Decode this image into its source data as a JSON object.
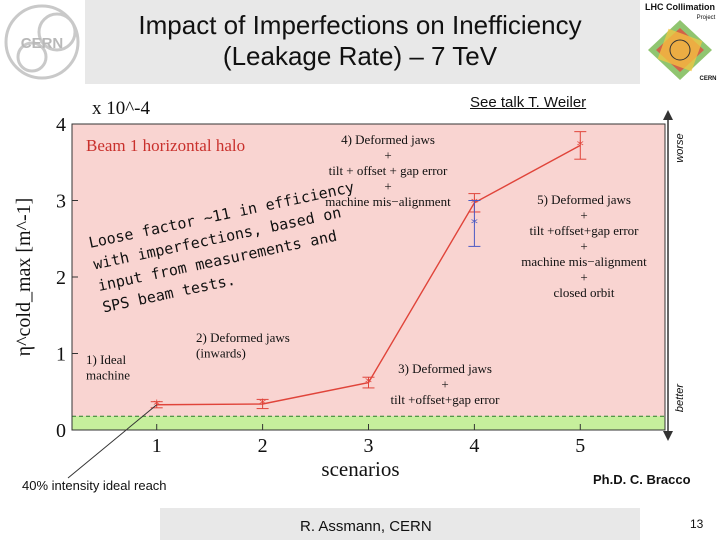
{
  "header": {
    "title_line1": "Impact of Imperfections on Inefficiency",
    "title_line2": "(Leakage Rate) – 7 TeV"
  },
  "logos": {
    "cern": "CERN",
    "lhc_line1": "LHC Collimation",
    "lhc_line2": "Project",
    "lhc_line3": "CERN"
  },
  "see_talk": "See talk T. Weiler",
  "side_arrow": {
    "top": "worse",
    "bottom": "better"
  },
  "annotation": {
    "loose_factor": [
      "Loose factor ~11 in efficiency",
      "with imperfections, based on",
      "input from measurements and",
      "SPS beam tests."
    ]
  },
  "intensity_label": "40% intensity ideal reach",
  "credit": "Ph.D. C. Bracco",
  "footer": {
    "author": "R. Assmann, CERN",
    "page": "13"
  },
  "chart_data": {
    "type": "line",
    "title": "Beam 1 horizontal halo",
    "xlabel": "scenarios",
    "ylabel": "η^cold_max [m^-1]",
    "y_multiplier": "x 10^-4",
    "xlim": [
      0.2,
      5.8
    ],
    "ylim": [
      0,
      4
    ],
    "x_ticks": [
      "1",
      "2",
      "3",
      "4",
      "5"
    ],
    "y_ticks": [
      "0",
      "1",
      "2",
      "3",
      "4"
    ],
    "series": [
      {
        "x": [
          1,
          2,
          3,
          4,
          5
        ],
        "y": [
          0.33,
          0.34,
          0.62,
          2.97,
          3.72
        ],
        "err": [
          0.04,
          0.06,
          0.07,
          0.12,
          0.18
        ]
      }
    ],
    "extra_point": {
      "x": 4,
      "y": 2.7,
      "err_low": 0.3,
      "err_high": 0.3
    },
    "reference_line": {
      "y": 0.18
    },
    "scenario_labels": [
      {
        "lines": [
          "1) Ideal",
          "machine"
        ]
      },
      {
        "lines": [
          "2) Deformed jaws",
          "(inwards)"
        ]
      },
      {
        "lines": [
          "3) Deformed jaws",
          "+",
          "tilt +offset+gap error"
        ]
      },
      {
        "lines": [
          "4) Deformed jaws",
          "+",
          "tilt + offset + gap error",
          "+",
          "machine mis−alignment"
        ]
      },
      {
        "lines": [
          "5) Deformed jaws",
          "+",
          "tilt +offset+gap error",
          "+",
          "machine mis−alignment",
          "+",
          "closed orbit"
        ]
      }
    ],
    "colors": {
      "background": "#f9d4d1",
      "green_band": "#c6ef9c",
      "line": "#e0443a",
      "title": "#c9302c",
      "extra_marker": "#4a59c4"
    }
  }
}
